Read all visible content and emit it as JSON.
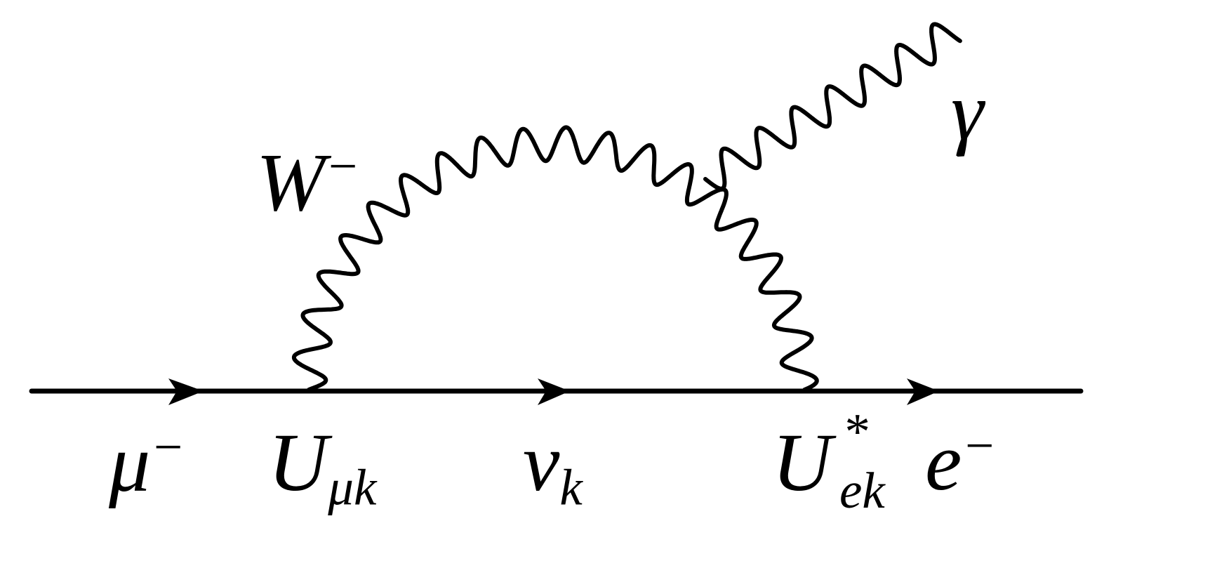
{
  "diagram": {
    "type": "feynman",
    "labels": {
      "incoming": {
        "base": "μ",
        "sup": "−"
      },
      "vertex1": {
        "base": "U",
        "sub": "μk"
      },
      "internal_fermion": {
        "base": "ν",
        "sub": "k"
      },
      "vertex2": {
        "base": "U",
        "sup": "*",
        "sub": "ek"
      },
      "outgoing": {
        "base": "e",
        "sup": "−"
      },
      "boson": {
        "base": "W",
        "sup": "−"
      },
      "photon": {
        "base": "γ"
      }
    },
    "line_color": "#000000"
  }
}
